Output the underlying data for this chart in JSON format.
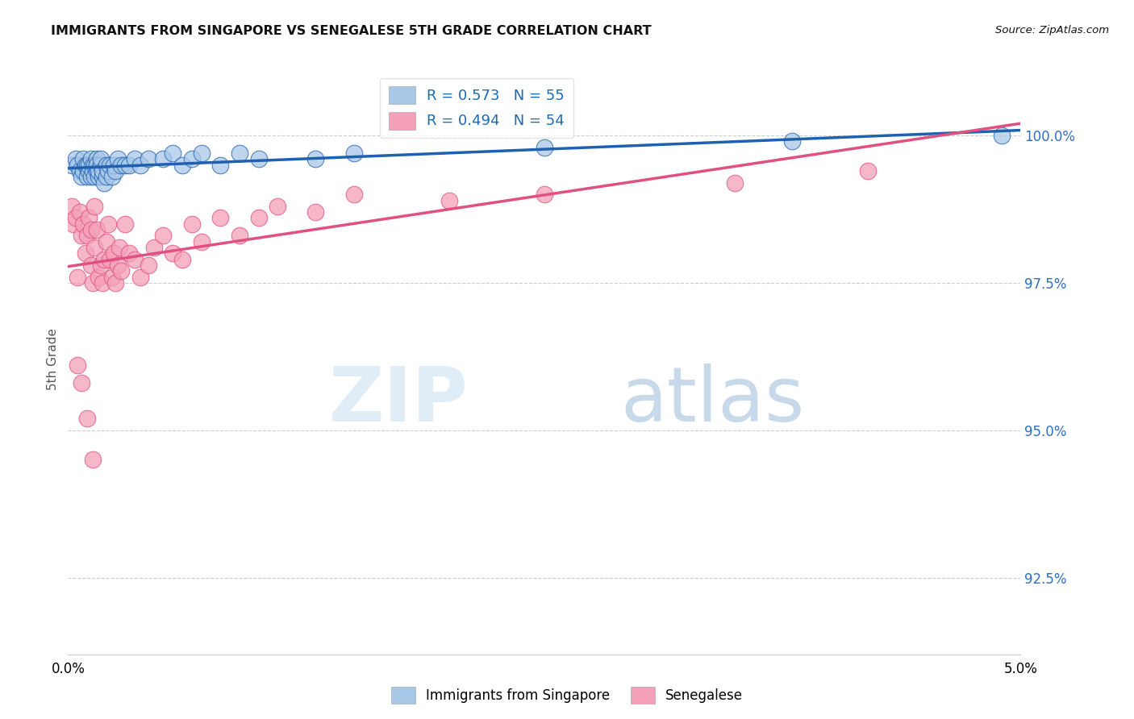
{
  "title": "IMMIGRANTS FROM SINGAPORE VS SENEGALESE 5TH GRADE CORRELATION CHART",
  "source": "Source: ZipAtlas.com",
  "ylabel": "5th Grade",
  "y_ticks": [
    92.5,
    95.0,
    97.5,
    100.0
  ],
  "y_tick_labels": [
    "92.5%",
    "95.0%",
    "97.5%",
    "100.0%"
  ],
  "x_range": [
    0.0,
    5.0
  ],
  "y_range": [
    91.2,
    101.2
  ],
  "legend_blue_label": "R = 0.573   N = 55",
  "legend_pink_label": "R = 0.494   N = 54",
  "legend_bottom_blue": "Immigrants from Singapore",
  "legend_bottom_pink": "Senegalese",
  "blue_color": "#a8c8e8",
  "pink_color": "#f4a0b8",
  "blue_line_color": "#2060b0",
  "pink_line_color": "#e05080",
  "watermark_zip": "ZIP",
  "watermark_atlas": "atlas",
  "singapore_x": [
    0.02,
    0.04,
    0.05,
    0.06,
    0.07,
    0.08,
    0.08,
    0.09,
    0.1,
    0.1,
    0.11,
    0.11,
    0.12,
    0.12,
    0.13,
    0.13,
    0.14,
    0.14,
    0.15,
    0.15,
    0.15,
    0.16,
    0.16,
    0.17,
    0.17,
    0.18,
    0.18,
    0.19,
    0.2,
    0.2,
    0.21,
    0.22,
    0.23,
    0.24,
    0.25,
    0.26,
    0.28,
    0.3,
    0.32,
    0.35,
    0.38,
    0.42,
    0.5,
    0.55,
    0.6,
    0.65,
    0.7,
    0.8,
    0.9,
    1.0,
    1.3,
    1.5,
    2.5,
    3.8,
    4.9
  ],
  "singapore_y": [
    99.5,
    99.6,
    99.5,
    99.4,
    99.3,
    99.6,
    99.4,
    99.5,
    99.5,
    99.3,
    99.4,
    99.5,
    99.6,
    99.3,
    99.5,
    99.4,
    99.3,
    99.5,
    99.6,
    99.4,
    99.5,
    99.3,
    99.4,
    99.5,
    99.6,
    99.3,
    99.4,
    99.2,
    99.5,
    99.3,
    99.4,
    99.5,
    99.3,
    99.5,
    99.4,
    99.6,
    99.5,
    99.5,
    99.5,
    99.6,
    99.5,
    99.6,
    99.6,
    99.7,
    99.5,
    99.6,
    99.7,
    99.5,
    99.7,
    99.6,
    99.6,
    99.7,
    99.8,
    99.9,
    100.0
  ],
  "senegalese_x": [
    0.02,
    0.03,
    0.04,
    0.05,
    0.06,
    0.07,
    0.08,
    0.09,
    0.1,
    0.11,
    0.12,
    0.12,
    0.13,
    0.14,
    0.14,
    0.15,
    0.16,
    0.17,
    0.18,
    0.19,
    0.2,
    0.21,
    0.22,
    0.23,
    0.24,
    0.25,
    0.26,
    0.27,
    0.28,
    0.3,
    0.32,
    0.35,
    0.38,
    0.42,
    0.45,
    0.5,
    0.55,
    0.6,
    0.65,
    0.7,
    0.8,
    0.9,
    1.0,
    1.1,
    1.3,
    1.5,
    2.0,
    2.5,
    3.5,
    4.2,
    0.05,
    0.07,
    0.1,
    0.13
  ],
  "senegalese_y": [
    98.8,
    98.5,
    98.6,
    97.6,
    98.7,
    98.3,
    98.5,
    98.0,
    98.3,
    98.6,
    97.8,
    98.4,
    97.5,
    98.1,
    98.8,
    98.4,
    97.6,
    97.8,
    97.5,
    97.9,
    98.2,
    98.5,
    97.9,
    97.6,
    98.0,
    97.5,
    97.8,
    98.1,
    97.7,
    98.5,
    98.0,
    97.9,
    97.6,
    97.8,
    98.1,
    98.3,
    98.0,
    97.9,
    98.5,
    98.2,
    98.6,
    98.3,
    98.6,
    98.8,
    98.7,
    99.0,
    98.9,
    99.0,
    99.2,
    99.4,
    96.1,
    95.8,
    95.2,
    94.5
  ]
}
